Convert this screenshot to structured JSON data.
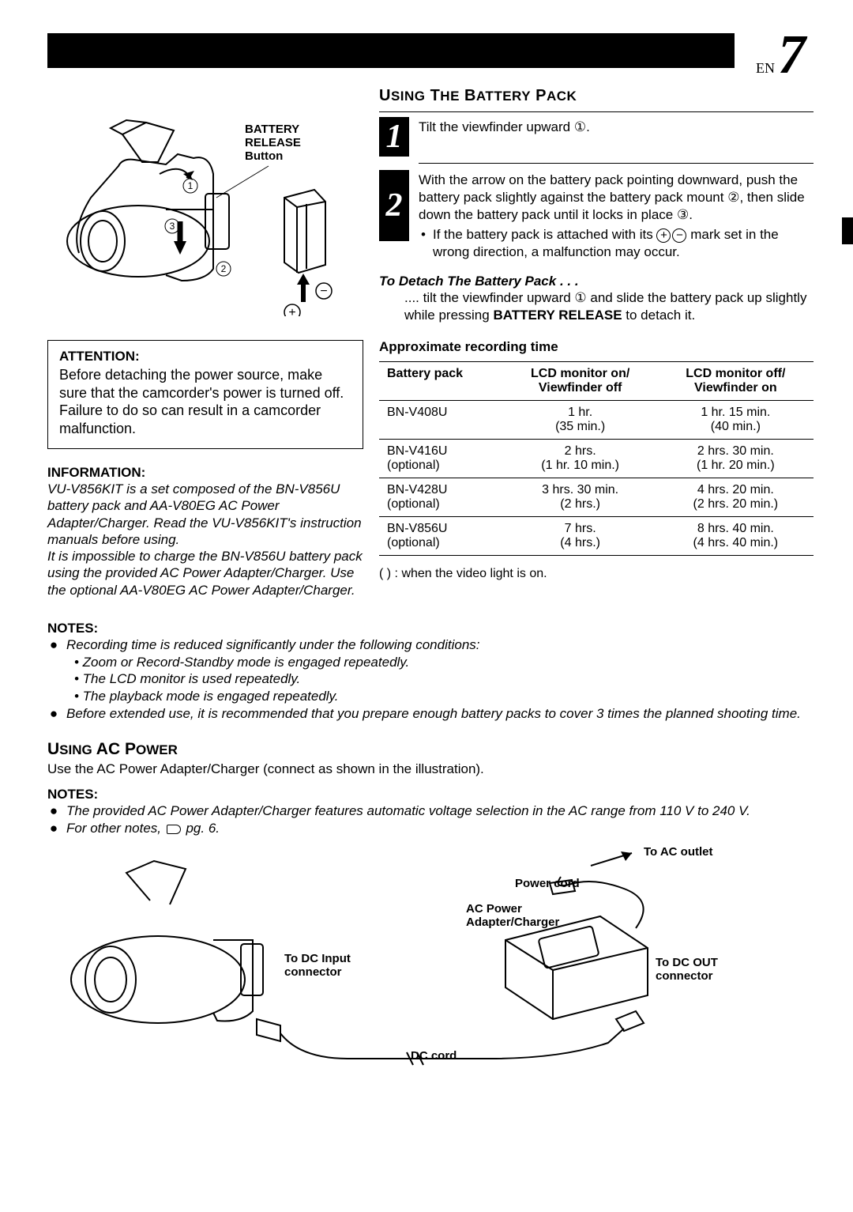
{
  "page": {
    "lang": "EN",
    "number": "7"
  },
  "illustration_top": {
    "label_release": "BATTERY RELEASE",
    "label_button": "Button"
  },
  "attention": {
    "title": "ATTENTION:",
    "body": "Before detaching the power source, make sure that the camcorder's power is turned off. Failure to do so can result in a camcorder malfunction."
  },
  "information": {
    "title": "INFORMATION:",
    "body1": "VU-V856KIT is a set composed of the BN-V856U battery pack and AA-V80EG AC Power Adapter/Charger. Read the VU-V856KIT's instruction manuals before using.",
    "body2": "It is impossible to charge the BN-V856U battery pack using the provided AC Power Adapter/Charger. Use the optional AA-V80EG AC Power Adapter/Charger."
  },
  "battery_section": {
    "title": "Using The Battery Pack",
    "step1": "Tilt the viewfinder upward ①.",
    "step2": "With the arrow on the battery pack pointing downward, push the battery pack slightly against the battery pack mount ②, then slide down the battery pack until it locks in place ③.",
    "step2_bullet_a": "If the battery pack is attached with its ",
    "step2_bullet_b": " mark set in the wrong direction, a malfunction may occur.",
    "detach_title": "To Detach The Battery Pack . . .",
    "detach_a": ".... tilt the viewfinder upward ① and slide the battery pack up slightly while pressing ",
    "detach_bold": "BATTERY RELEASE",
    "detach_c": " to detach it."
  },
  "table": {
    "caption": "Approximate recording time",
    "headers": {
      "a": "Battery pack",
      "b1": "LCD monitor on/",
      "b2": "Viewfinder off",
      "c1": "LCD monitor off/",
      "c2": "Viewfinder on"
    },
    "rows": [
      {
        "name": "BN-V408U",
        "sub": "",
        "on1": "1 hr.",
        "on2": "(35 min.)",
        "off1": "1 hr. 15 min.",
        "off2": "(40 min.)"
      },
      {
        "name": "BN-V416U",
        "sub": "(optional)",
        "on1": "2 hrs.",
        "on2": "(1 hr. 10 min.)",
        "off1": "2 hrs. 30 min.",
        "off2": "(1 hr. 20 min.)"
      },
      {
        "name": "BN-V428U",
        "sub": "(optional)",
        "on1": "3 hrs. 30 min.",
        "on2": "(2 hrs.)",
        "off1": "4 hrs. 20 min.",
        "off2": "(2 hrs. 20 min.)"
      },
      {
        "name": "BN-V856U",
        "sub": "(optional)",
        "on1": "7 hrs.",
        "on2": "(4 hrs.)",
        "off1": "8 hrs. 40 min.",
        "off2": "(4 hrs. 40 min.)"
      }
    ],
    "footnote": "(     ) : when the video light is on."
  },
  "notes": {
    "title": "NOTES:",
    "item1": "Recording time is reduced significantly under the following conditions:",
    "sub1": "• Zoom or Record-Standby mode is engaged repeatedly.",
    "sub2": "• The LCD monitor is used repeatedly.",
    "sub3": "• The playback mode is engaged repeatedly.",
    "item2": "Before extended use, it is recommended that you prepare enough battery packs to cover 3 times the planned shooting time."
  },
  "ac": {
    "title": "Using AC Power",
    "body": "Use the AC Power Adapter/Charger (connect as shown in the illustration).",
    "notes_title": "NOTES:",
    "note1": "The provided AC Power Adapter/Charger features automatic voltage selection in the AC range from 110 V to 240 V.",
    "note2a": "For other notes, ",
    "note2b": " pg. 6."
  },
  "ac_illus": {
    "to_ac": "To AC outlet",
    "power_cord": "Power cord",
    "ac_adapter1": "AC Power",
    "ac_adapter2": "Adapter/Charger",
    "dc_in1": "To DC Input",
    "dc_in2": "connector",
    "dc_out1": "To DC OUT",
    "dc_out2": "connector",
    "dc_cord": "DC cord"
  }
}
